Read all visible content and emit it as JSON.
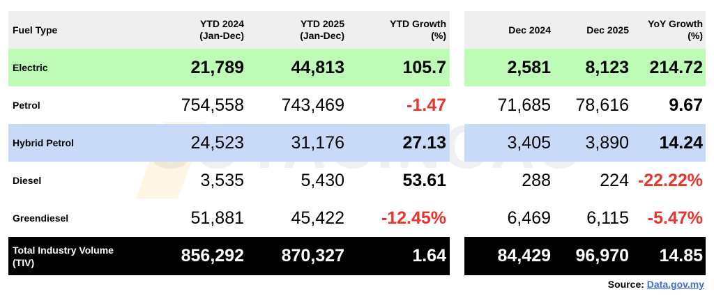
{
  "watermark": "SOYACINCAU",
  "source": {
    "label": "Source:",
    "link": "Data.gov.my"
  },
  "colors": {
    "electric": "#bdfbb6",
    "hybrid": "#c9daf8",
    "header": "#efefef",
    "total": "#000000",
    "negative": "#e8352b"
  },
  "chart_data": {
    "type": "table",
    "left_headers": [
      "Fuel Type",
      "YTD 2024\n(Jan-Dec)",
      "YTD 2025\n(Jan-Dec)",
      "YTD Growth\n(%)"
    ],
    "right_headers": [
      "Dec 2024",
      "Dec 2025",
      "YoY Growth\n(%)"
    ],
    "rows": [
      {
        "fuel": "Electric",
        "ytd2024": "21,789",
        "ytd2025": "44,813",
        "ytd_growth": "105.7",
        "dec2024": "2,581",
        "dec2025": "8,123",
        "yoy_growth": "214.72",
        "style": "green"
      },
      {
        "fuel": "Petrol",
        "ytd2024": "754,558",
        "ytd2025": "743,469",
        "ytd_growth": "-1.47",
        "dec2024": "71,685",
        "dec2025": "78,616",
        "yoy_growth": "9.67",
        "style": ""
      },
      {
        "fuel": "Hybrid Petrol",
        "ytd2024": "24,523",
        "ytd2025": "31,176",
        "ytd_growth": "27.13",
        "dec2024": "3,405",
        "dec2025": "3,890",
        "yoy_growth": "14.24",
        "style": "blue"
      },
      {
        "fuel": "Diesel",
        "ytd2024": "3,535",
        "ytd2025": "5,430",
        "ytd_growth": "53.61",
        "dec2024": "288",
        "dec2025": "224",
        "yoy_growth": "-22.22%",
        "style": ""
      },
      {
        "fuel": "Greendiesel",
        "ytd2024": "51,881",
        "ytd2025": "45,422",
        "ytd_growth": "-12.45%",
        "dec2024": "6,469",
        "dec2025": "6,115",
        "yoy_growth": "-5.47%",
        "style": ""
      },
      {
        "fuel": "Total Industry Volume\n(TIV)",
        "ytd2024": "856,292",
        "ytd2025": "870,327",
        "ytd_growth": "1.64",
        "dec2024": "84,429",
        "dec2025": "96,970",
        "yoy_growth": "14.85",
        "style": "black"
      }
    ]
  }
}
